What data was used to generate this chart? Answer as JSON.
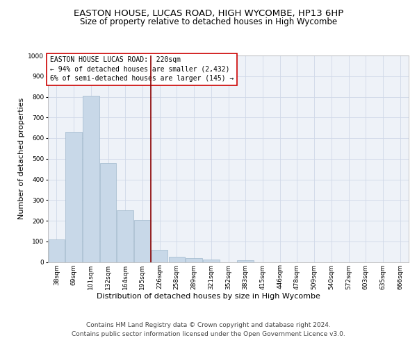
{
  "title": "EASTON HOUSE, LUCAS ROAD, HIGH WYCOMBE, HP13 6HP",
  "subtitle": "Size of property relative to detached houses in High Wycombe",
  "xlabel": "Distribution of detached houses by size in High Wycombe",
  "ylabel": "Number of detached properties",
  "categories": [
    "38sqm",
    "69sqm",
    "101sqm",
    "132sqm",
    "164sqm",
    "195sqm",
    "226sqm",
    "258sqm",
    "289sqm",
    "321sqm",
    "352sqm",
    "383sqm",
    "415sqm",
    "446sqm",
    "478sqm",
    "509sqm",
    "540sqm",
    "572sqm",
    "603sqm",
    "635sqm",
    "666sqm"
  ],
  "values": [
    110,
    630,
    805,
    480,
    250,
    205,
    60,
    25,
    18,
    12,
    0,
    8,
    0,
    0,
    0,
    0,
    0,
    0,
    0,
    0,
    0
  ],
  "bar_color": "#c8d8e8",
  "bar_edge_color": "#a0b8cc",
  "vline_x": 5.5,
  "vline_color": "#8b0000",
  "annotation_text": "EASTON HOUSE LUCAS ROAD:  220sqm\n← 94% of detached houses are smaller (2,432)\n6% of semi-detached houses are larger (145) →",
  "annotation_box_color": "#ffffff",
  "annotation_box_edge": "#cc0000",
  "ylim": [
    0,
    1000
  ],
  "yticks": [
    0,
    100,
    200,
    300,
    400,
    500,
    600,
    700,
    800,
    900,
    1000
  ],
  "grid_color": "#d0d8e8",
  "bg_color": "#eef2f8",
  "footer_line1": "Contains HM Land Registry data © Crown copyright and database right 2024.",
  "footer_line2": "Contains public sector information licensed under the Open Government Licence v3.0.",
  "title_fontsize": 9.5,
  "subtitle_fontsize": 8.5,
  "axis_label_fontsize": 8,
  "tick_fontsize": 6.5,
  "annotation_fontsize": 7.0,
  "footer_fontsize": 6.5
}
